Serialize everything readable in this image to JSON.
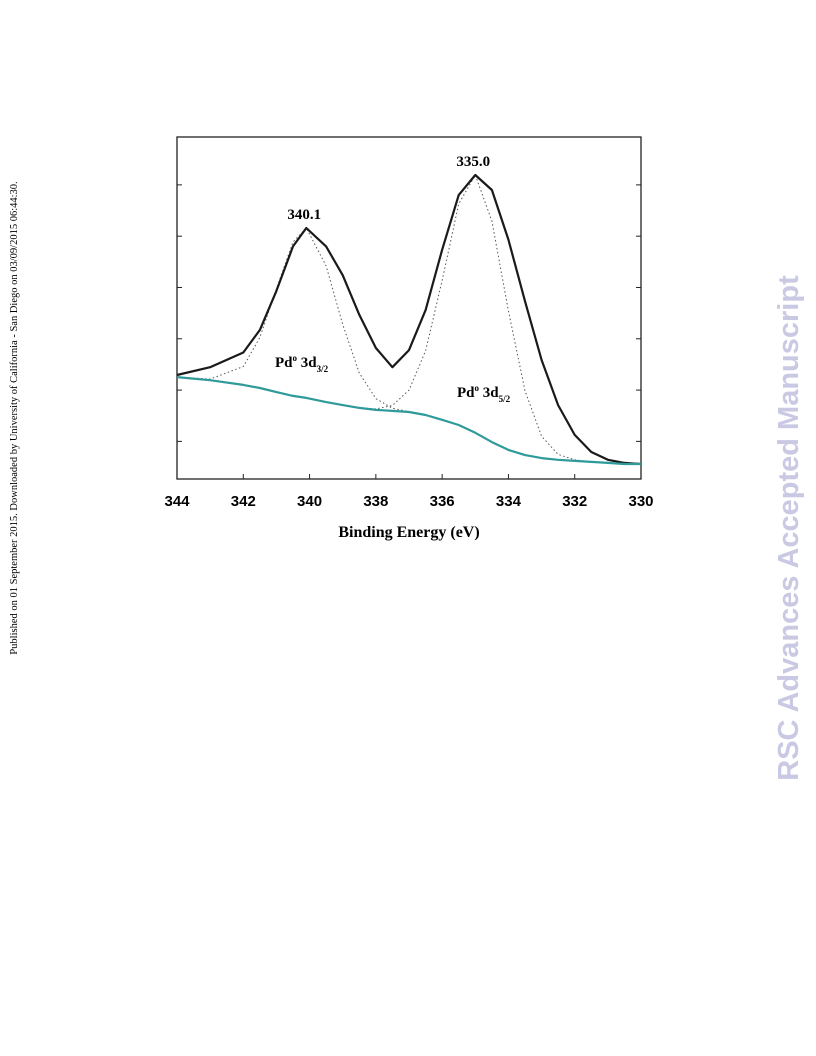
{
  "sidebar": {
    "published": "Published on 01 September 2015. Downloaded by University of California - San Diego on 03/09/2015 06:44:30.",
    "watermark": "RSC Advances Accepted Manuscript"
  },
  "chart_data": {
    "type": "line",
    "xlabel": "Binding Energy (eV)",
    "x": [
      344,
      343,
      342,
      341.5,
      341,
      340.5,
      340.1,
      339.5,
      339,
      338.5,
      338,
      337.5,
      337,
      336.5,
      336,
      335.5,
      335,
      334.5,
      334,
      333.5,
      333,
      332.5,
      332,
      331.5,
      331,
      330.5,
      330
    ],
    "series": [
      {
        "color": "#1a1a1a",
        "style": "solid",
        "values": [
          30.4,
          32.7,
          37,
          43.6,
          55,
          68,
          73.4,
          68,
          59.6,
          48,
          38.3,
          32.7,
          37.7,
          49.4,
          67,
          83,
          88.9,
          84.5,
          70,
          52,
          34.8,
          21.6,
          12.9,
          7.9,
          5.6,
          4.7,
          4.4
        ]
      },
      {
        "color": "#2e9a9a",
        "style": "solid",
        "values": [
          29.8,
          28.9,
          27.5,
          26.6,
          25.4,
          24.3,
          23.7,
          22.5,
          21.6,
          20.8,
          20.2,
          19.9,
          19.6,
          18.7,
          17.3,
          15.8,
          13.5,
          10.8,
          8.5,
          7,
          6.1,
          5.6,
          5.3,
          5,
          4.7,
          4.4,
          4.4
        ]
      },
      {
        "color": "#555555",
        "style": "dotted",
        "values": [
          29.8,
          29.2,
          32.9,
          41.4,
          55.6,
          69.3,
          73.4,
          62.3,
          45.2,
          31,
          23.5,
          20.7,
          19.7,
          18.7,
          17.3,
          15.8,
          13.5,
          10.8,
          8.5,
          7,
          6.1,
          5.6,
          5.3,
          5,
          4.7,
          4.4,
          4.4
        ]
      },
      {
        "color": "#555555",
        "style": "dotted",
        "values": [
          29.8,
          28.9,
          27.5,
          26.6,
          25.4,
          24.3,
          23.7,
          22.5,
          21.6,
          20.8,
          20.5,
          21.5,
          26,
          37.5,
          58,
          80.4,
          88.9,
          75.4,
          49.2,
          25.8,
          12.5,
          7.2,
          5.6,
          5,
          4.7,
          4.4,
          4.4
        ]
      }
    ],
    "xlim": [
      344,
      330
    ],
    "xticks": [
      344,
      342,
      340,
      338,
      336,
      334,
      332,
      330
    ],
    "ylim": [
      0,
      100
    ],
    "yticks": [
      11,
      26,
      41,
      56,
      71,
      86
    ],
    "peak_labels": [
      "340.1",
      "335.0"
    ],
    "component_labels": [
      {
        "name": "Pd",
        "sup": "o",
        "level": " 3d",
        "sub": "3/2"
      },
      {
        "name": "Pd",
        "sup": "o",
        "level": " 3d",
        "sub": "5/2"
      }
    ]
  }
}
